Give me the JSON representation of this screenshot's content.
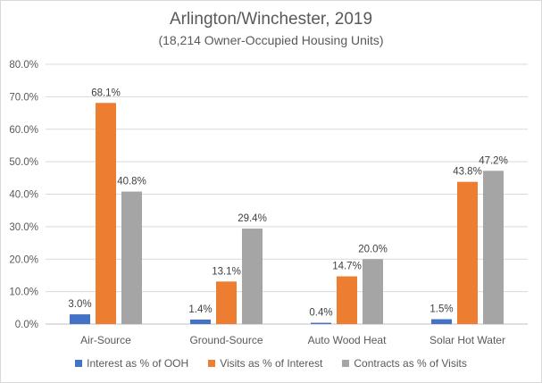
{
  "chart_data": {
    "type": "bar",
    "title": "Arlington/Winchester, 2019",
    "subtitle": "(18,214 Owner-Occupied Housing Units)",
    "categories": [
      "Air-Source",
      "Ground-Source",
      "Auto Wood Heat",
      "Solar Hot Water"
    ],
    "series": [
      {
        "name": "Interest as % of OOH",
        "color": "#4472c4",
        "values": [
          3.0,
          1.4,
          0.4,
          1.5
        ],
        "labels": [
          "3.0%",
          "1.4%",
          "0.4%",
          "1.5%"
        ]
      },
      {
        "name": "Visits as % of Interest",
        "color": "#ed7d31",
        "values": [
          68.1,
          13.1,
          14.7,
          43.8
        ],
        "labels": [
          "68.1%",
          "13.1%",
          "14.7%",
          "43.8%"
        ]
      },
      {
        "name": "Contracts as % of Visits",
        "color": "#a5a5a5",
        "values": [
          40.8,
          29.4,
          20.0,
          47.2
        ],
        "labels": [
          "40.8%",
          "29.4%",
          "20.0%",
          "47.2%"
        ]
      }
    ],
    "ylim": [
      0,
      80
    ],
    "yticks": [
      0,
      10,
      20,
      30,
      40,
      50,
      60,
      70,
      80
    ],
    "ytick_labels": [
      "0.0%",
      "10.0%",
      "20.0%",
      "30.0%",
      "40.0%",
      "50.0%",
      "60.0%",
      "70.0%",
      "80.0%"
    ],
    "xlabel": "",
    "ylabel": "",
    "grid": true,
    "legend_position": "bottom"
  }
}
